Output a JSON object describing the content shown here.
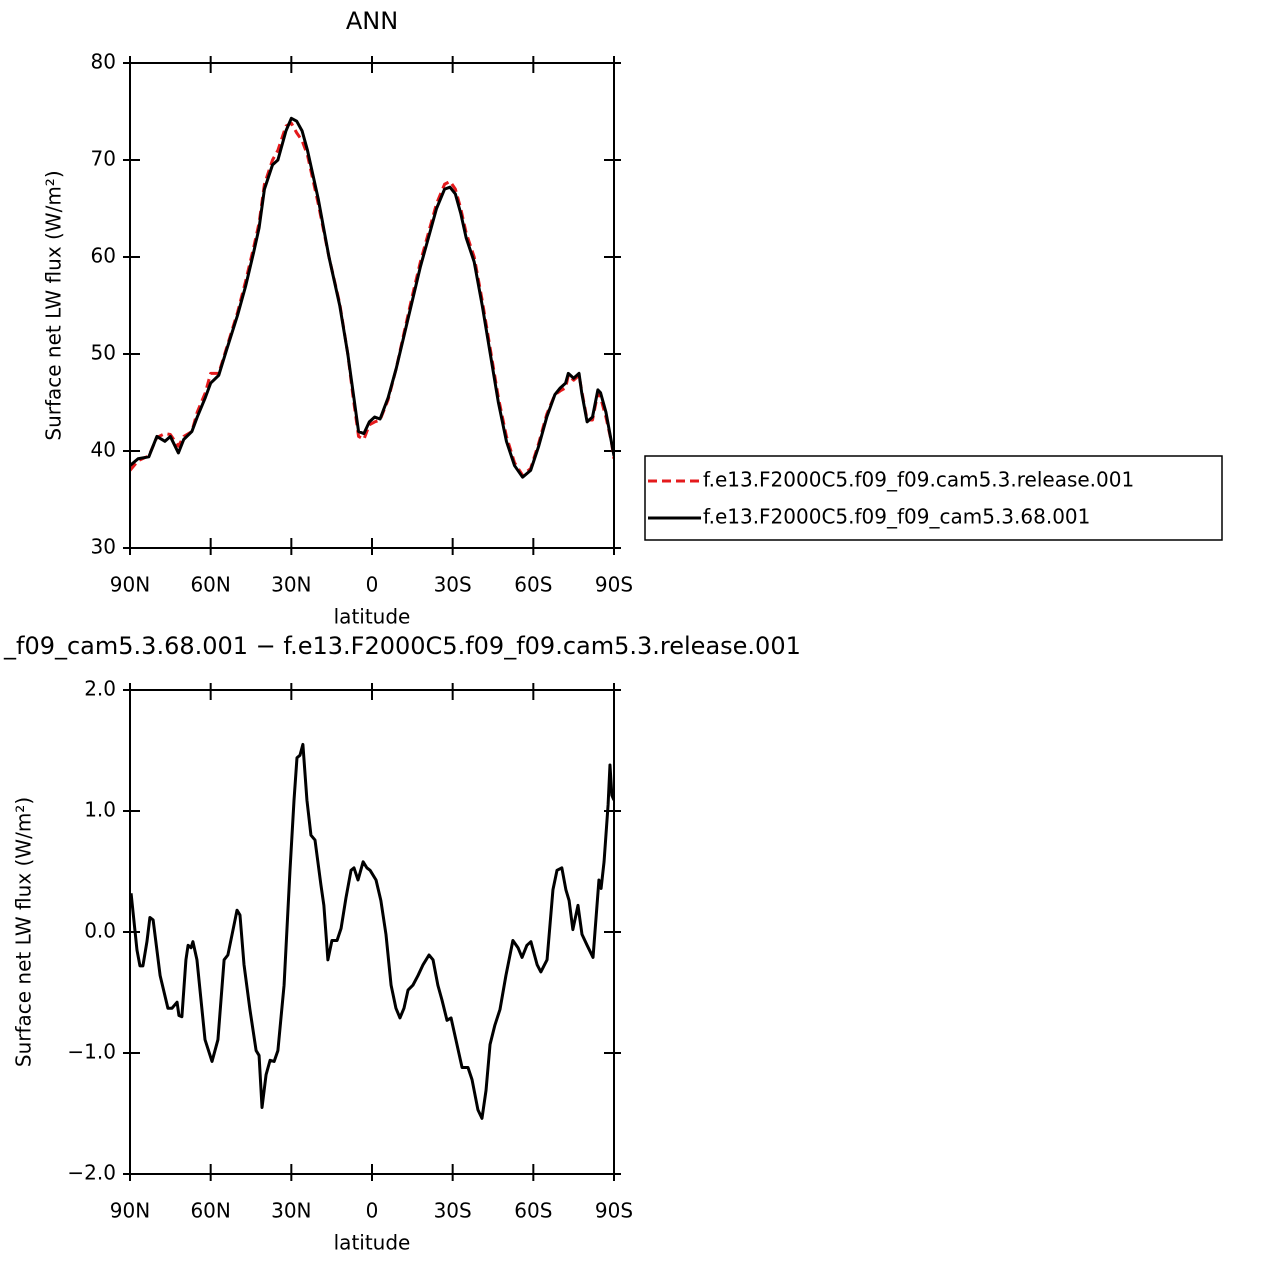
{
  "chart_data": [
    {
      "type": "line",
      "title": "ANN",
      "x_label": "latitude",
      "y_label": "Surface net LW flux (W/m²)",
      "xlim": [
        90,
        -90
      ],
      "ylim": [
        30,
        80
      ],
      "xticks": [
        {
          "value": 90,
          "label": "90N"
        },
        {
          "value": 60,
          "label": "60N"
        },
        {
          "value": 30,
          "label": "30N"
        },
        0,
        {
          "value": -30,
          "label": "30S"
        },
        {
          "value": -60,
          "label": "60S"
        },
        {
          "value": -90,
          "label": "90S"
        }
      ],
      "yticks": [
        30,
        40,
        50,
        60,
        70,
        80
      ],
      "legend": true,
      "x": [
        90,
        87,
        83,
        80,
        77,
        75,
        72,
        70,
        67,
        65,
        62,
        60,
        57,
        54,
        50,
        47,
        44,
        42,
        40,
        37,
        35,
        32,
        30,
        28,
        26,
        24,
        20,
        16,
        12,
        9,
        7,
        5,
        3,
        1,
        -1,
        -3,
        -6,
        -9,
        -12,
        -15,
        -18,
        -21,
        -24,
        -27,
        -29,
        -31,
        -33,
        -35,
        -38,
        -41,
        -44,
        -47,
        -50,
        -53,
        -56,
        -59,
        -62,
        -65,
        -68,
        -70,
        -72,
        -73,
        -75,
        -77,
        -78,
        -80,
        -82,
        -84,
        -85,
        -87,
        -89,
        -90
      ],
      "series": [
        {
          "name": "f.e13.F2000C5.f09_f09.cam5.3.release.001",
          "color": "#e41a1c",
          "dash": true,
          "values": [
            38.0,
            39.0,
            39.5,
            41.4,
            41.8,
            41.7,
            40.5,
            41.5,
            42.0,
            44.0,
            46.0,
            48.0,
            48.0,
            50.7,
            54.3,
            57.5,
            61,
            63.5,
            67.5,
            70,
            71,
            73.5,
            73.8,
            72.8,
            72,
            70.5,
            65.5,
            60,
            55.2,
            50,
            45.5,
            41.5,
            41.2,
            42.7,
            43,
            43.2,
            45.3,
            48.5,
            52.3,
            56,
            59.5,
            62.5,
            65.5,
            67.5,
            67.8,
            67,
            65,
            62.5,
            60,
            55.5,
            50.5,
            45.5,
            41.5,
            38.8,
            37.5,
            38.2,
            40.8,
            43.8,
            45.8,
            46.2,
            46.5,
            47.8,
            47.3,
            47.8,
            46.2,
            43.2,
            43.2,
            46,
            45.5,
            43.5,
            41,
            39.2
          ]
        },
        {
          "name": "f.e13.F2000C5.f09_f09_cam5.3.68.001",
          "color": "#000000",
          "dash": false,
          "values": [
            38.5,
            39.2,
            39.4,
            41.5,
            41.0,
            41.5,
            39.8,
            41.2,
            42.0,
            43.5,
            45.5,
            47.0,
            47.8,
            50.5,
            54,
            57,
            60.5,
            63,
            67,
            69.5,
            70,
            73,
            74.3,
            74,
            73,
            71,
            66,
            60,
            55,
            50,
            46,
            42,
            41.8,
            43,
            43.5,
            43.3,
            45.5,
            48.5,
            52,
            55.5,
            59,
            62,
            65,
            67,
            67.2,
            66.5,
            64.5,
            62,
            59.5,
            55,
            50,
            45,
            41,
            38.5,
            37.3,
            38,
            40.5,
            43.5,
            45.8,
            46.5,
            47,
            48,
            47.5,
            48,
            46,
            43,
            43.5,
            46.3,
            46,
            44,
            41,
            39.5
          ]
        }
      ]
    },
    {
      "type": "line",
      "title": "_f09_cam5.3.68.001 − f.e13.F2000C5.f09_f09.cam5.3.release.001",
      "x_label": "latitude",
      "y_label": "Surface net LW flux (W/m²)",
      "xlim": [
        90,
        -90
      ],
      "ylim": [
        -2,
        2
      ],
      "xticks": [
        {
          "value": 90,
          "label": "90N"
        },
        {
          "value": 60,
          "label": "60N"
        },
        {
          "value": 30,
          "label": "30N"
        },
        0,
        {
          "value": -30,
          "label": "30S"
        },
        {
          "value": -60,
          "label": "60S"
        },
        {
          "value": -90,
          "label": "90S"
        }
      ],
      "yticks": [
        {
          "value": 2,
          "label": "2.0"
        },
        {
          "value": 1,
          "label": "1.0"
        },
        {
          "value": 0,
          "label": "0.0"
        },
        {
          "value": -1,
          "label": "−1.0"
        },
        {
          "value": -2,
          "label": "−2.0"
        }
      ],
      "legend": false,
      "x": [
        89.6,
        87.4,
        86.3,
        85.2,
        83.7,
        82.6,
        81.4,
        78.8,
        75.9,
        74.4,
        72.5,
        71.8,
        70.7,
        69.2,
        68.4,
        67.3,
        66.6,
        65.1,
        62.1,
        59.5,
        57.3,
        55,
        53.6,
        51.3,
        50.2,
        49.1,
        47.6,
        45.4,
        43.1,
        42,
        40.9,
        39.4,
        37.9,
        36.4,
        35,
        32.7,
        30.5,
        29,
        27.9,
        26.8,
        25.7,
        24.2,
        22.7,
        21.2,
        19,
        17.9,
        16.4,
        14.9,
        13,
        11.5,
        9.7,
        7.8,
        6.7,
        5.2,
        3.3,
        1.9,
        0.7,
        -1.5,
        -3.3,
        -5.2,
        -7.1,
        -8.9,
        -10.4,
        -11.9,
        -13.4,
        -15.2,
        -17.1,
        -19,
        -21.2,
        -22.7,
        -24.5,
        -26,
        -27.9,
        -29.4,
        -31.2,
        -33.5,
        -35.7,
        -37.2,
        -39.4,
        -40.9,
        -42.4,
        -43.9,
        -45.7,
        -47.6,
        -49.8,
        -52.4,
        -54.3,
        -55.8,
        -57.6,
        -59.1,
        -61.4,
        -62.8,
        -65.1,
        -67.3,
        -68.8,
        -70.6,
        -72.1,
        -73.3,
        -74.7,
        -76.6,
        -78.1,
        -80,
        -82.2,
        -84.4,
        -85.2,
        -86.3,
        -87.8,
        -88.5,
        -89.2,
        -90
      ],
      "series": [
        {
          "color": "#000000",
          "dash": false,
          "values": [
            0.32,
            -0.15,
            -0.28,
            -0.28,
            -0.08,
            0.12,
            0.1,
            -0.36,
            -0.63,
            -0.63,
            -0.58,
            -0.69,
            -0.7,
            -0.23,
            -0.11,
            -0.13,
            -0.08,
            -0.23,
            -0.89,
            -1.07,
            -0.89,
            -0.23,
            -0.19,
            0.06,
            0.18,
            0.14,
            -0.27,
            -0.64,
            -0.98,
            -1.02,
            -1.45,
            -1.18,
            -1.06,
            -1.07,
            -0.98,
            -0.44,
            0.51,
            1.09,
            1.44,
            1.46,
            1.55,
            1.09,
            0.8,
            0.76,
            0.39,
            0.22,
            -0.23,
            -0.07,
            -0.07,
            0.03,
            0.28,
            0.51,
            0.53,
            0.43,
            0.58,
            0.53,
            0.51,
            0.43,
            0.26,
            -0.02,
            -0.44,
            -0.63,
            -0.71,
            -0.63,
            -0.48,
            -0.44,
            -0.36,
            -0.27,
            -0.19,
            -0.23,
            -0.44,
            -0.56,
            -0.73,
            -0.71,
            -0.89,
            -1.12,
            -1.12,
            -1.22,
            -1.47,
            -1.54,
            -1.31,
            -0.93,
            -0.77,
            -0.64,
            -0.36,
            -0.07,
            -0.13,
            -0.21,
            -0.11,
            -0.08,
            -0.27,
            -0.33,
            -0.23,
            0.35,
            0.51,
            0.53,
            0.35,
            0.26,
            0.02,
            0.22,
            -0.02,
            -0.11,
            -0.21,
            0.43,
            0.36,
            0.58,
            1.05,
            1.38,
            1.13,
            1.09
          ]
        }
      ]
    }
  ]
}
